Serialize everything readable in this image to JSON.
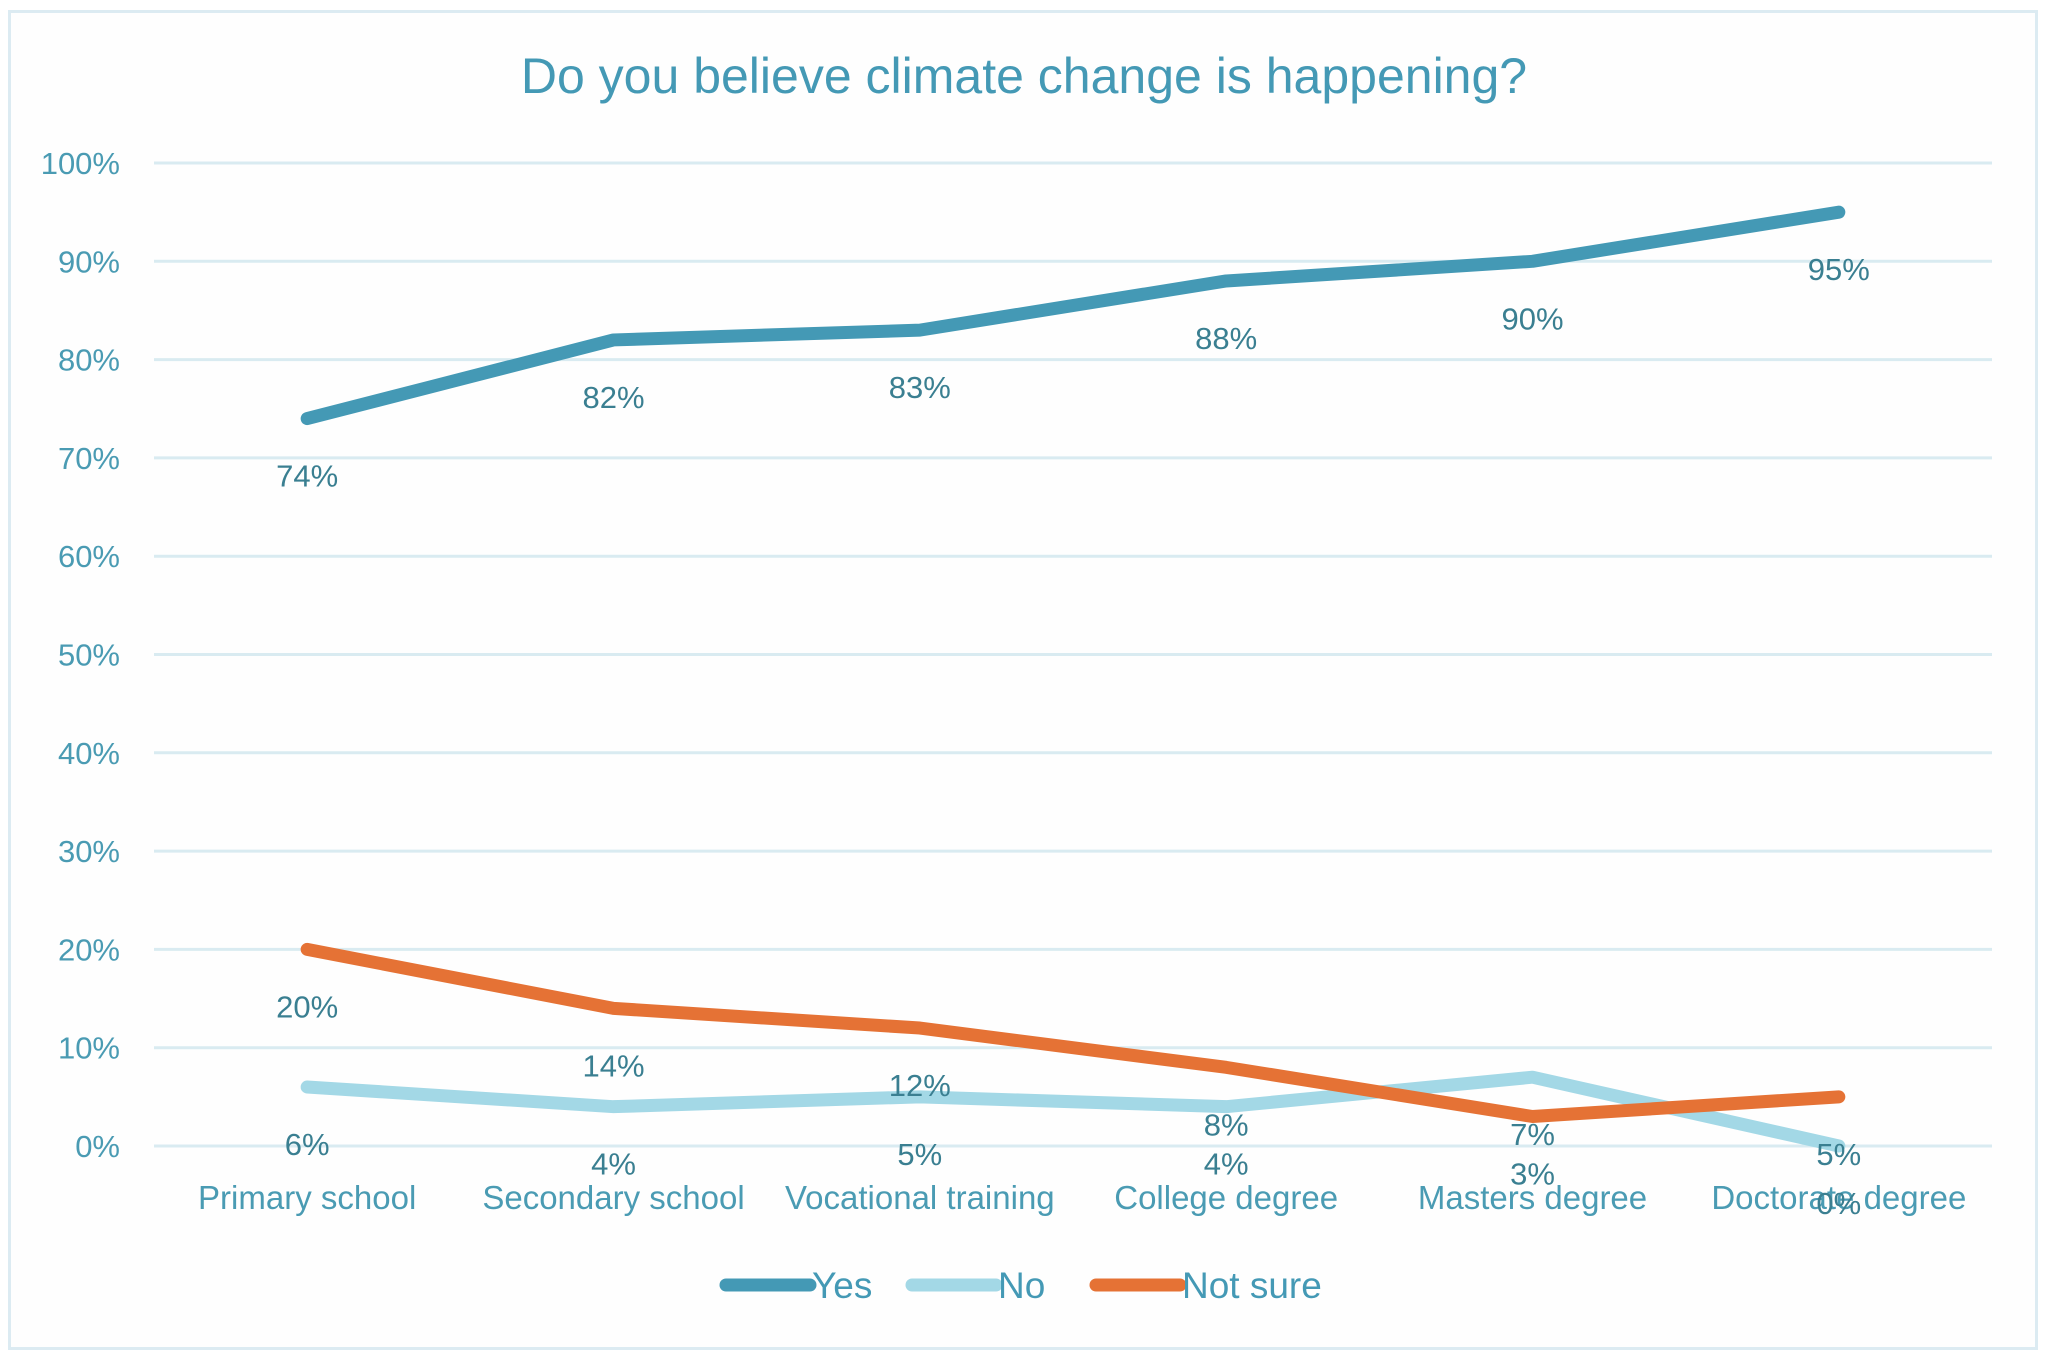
{
  "chart_data": {
    "type": "line",
    "title": "Do you believe climate change is happening?",
    "xlabel": "",
    "ylabel": "",
    "ylim": [
      0,
      100
    ],
    "y_ticks": [
      "0%",
      "10%",
      "20%",
      "30%",
      "40%",
      "50%",
      "60%",
      "70%",
      "80%",
      "90%",
      "100%"
    ],
    "grid": true,
    "legend_position": "bottom",
    "categories": [
      "Primary school",
      "Secondary school",
      "Vocational training",
      "College degree",
      "Masters degree",
      "Doctorate degree"
    ],
    "series": [
      {
        "name": "Yes",
        "color": "#4499b5",
        "values": [
          74,
          82,
          83,
          88,
          90,
          95
        ],
        "labels": [
          "74%",
          "82%",
          "83%",
          "88%",
          "90%",
          "95%"
        ]
      },
      {
        "name": "No",
        "color": "#a3d8e6",
        "values": [
          6,
          4,
          5,
          4,
          7,
          0
        ],
        "labels": [
          "6%",
          "4%",
          "5%",
          "4%",
          "7%",
          "0%"
        ]
      },
      {
        "name": "Not sure",
        "color": "#e57235",
        "values": [
          20,
          14,
          12,
          8,
          3,
          5
        ],
        "labels": [
          "20%",
          "14%",
          "12%",
          "8%",
          "3%",
          "5%"
        ]
      }
    ]
  }
}
